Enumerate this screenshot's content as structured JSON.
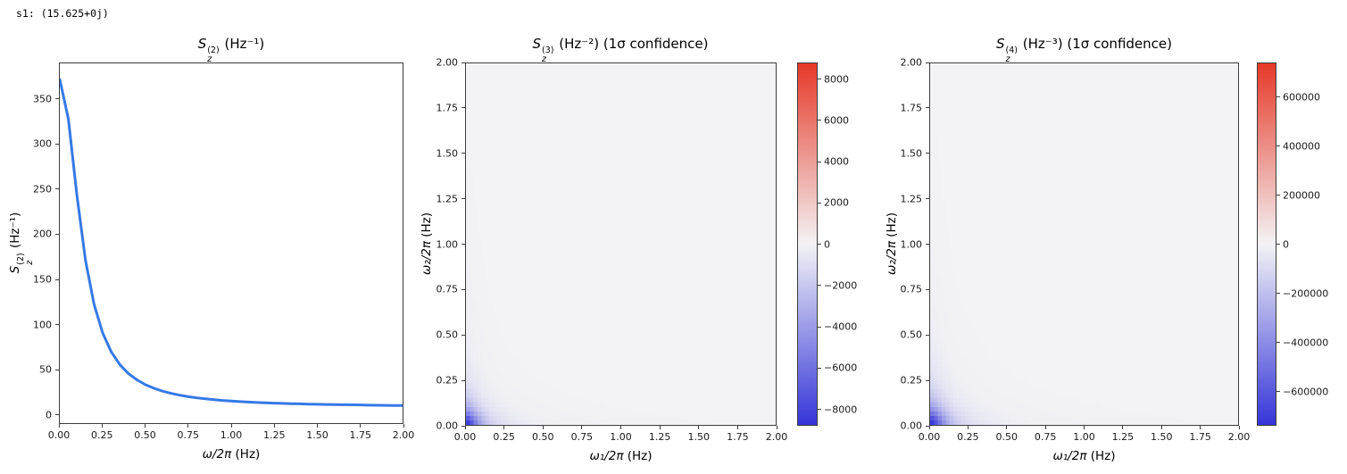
{
  "annotation": "s1: (15.625+0j)",
  "colors": {
    "line": "#3579e6",
    "cmap_neg": "#3535d9",
    "cmap_zero": "#f3f3f5",
    "cmap_pos": "#e63928",
    "spine": "#3c3c3c",
    "text": "#000000"
  },
  "panels": [
    {
      "title": {
        "base": "S",
        "sup": "(2)",
        "sub": "z",
        "rest": " (Hz⁻¹)"
      },
      "ylabel": {
        "base": "S",
        "sup": "(2)",
        "sub": "z",
        "rest": " (Hz⁻¹)"
      },
      "xlabel": {
        "math": "ω/2π",
        "unit": " (Hz)"
      },
      "xticks": [
        "0.00",
        "0.25",
        "0.50",
        "0.75",
        "1.00",
        "1.25",
        "1.50",
        "1.75",
        "2.00"
      ],
      "yticks": [
        "0",
        "50",
        "100",
        "150",
        "200",
        "250",
        "300",
        "350"
      ]
    },
    {
      "title": {
        "base": "S",
        "sup": "(3)",
        "sub": "z",
        "rest": " (Hz⁻²) (1σ confidence)"
      },
      "ylabel": {
        "math": "ω₂/2π",
        "unit": " (Hz)"
      },
      "xlabel": {
        "math": "ω₁/2π",
        "unit": " (Hz)"
      },
      "xticks": [
        "0.00",
        "0.25",
        "0.50",
        "0.75",
        "1.00",
        "1.25",
        "1.50",
        "1.75",
        "2.00"
      ],
      "yticks": [
        "0.00",
        "0.25",
        "0.50",
        "0.75",
        "1.00",
        "1.25",
        "1.50",
        "1.75",
        "2.00"
      ],
      "colorbar_ticks": [
        {
          "value": 8000,
          "label": "8000"
        },
        {
          "value": 6000,
          "label": "6000"
        },
        {
          "value": 4000,
          "label": "4000"
        },
        {
          "value": 2000,
          "label": "2000"
        },
        {
          "value": 0,
          "label": "0"
        },
        {
          "value": -2000,
          "label": "−2000"
        },
        {
          "value": -4000,
          "label": "−4000"
        },
        {
          "value": -6000,
          "label": "−6000"
        },
        {
          "value": -8000,
          "label": "−8000"
        }
      ]
    },
    {
      "title": {
        "base": "S",
        "sup": "(4)",
        "sub": "z",
        "rest": " (Hz⁻³) (1σ confidence)"
      },
      "ylabel": {
        "math": "ω₂/2π",
        "unit": " (Hz)"
      },
      "xlabel": {
        "math": "ω₁/2π",
        "unit": " (Hz)"
      },
      "xticks": [
        "0.00",
        "0.25",
        "0.50",
        "0.75",
        "1.00",
        "1.25",
        "1.50",
        "1.75",
        "2.00"
      ],
      "yticks": [
        "0.00",
        "0.25",
        "0.50",
        "0.75",
        "1.00",
        "1.25",
        "1.50",
        "1.75",
        "2.00"
      ],
      "colorbar_ticks": [
        {
          "value": 600000,
          "label": "600000"
        },
        {
          "value": 400000,
          "label": "400000"
        },
        {
          "value": 200000,
          "label": "200000"
        },
        {
          "value": 0,
          "label": "0"
        },
        {
          "value": -200000,
          "label": "−200000"
        },
        {
          "value": -400000,
          "label": "−400000"
        },
        {
          "value": -600000,
          "label": "−600000"
        }
      ]
    }
  ],
  "chart_data": [
    {
      "type": "line",
      "title": "S_z^(2) (Hz^-1)",
      "xlabel": "ω/2π (Hz)",
      "ylabel": "S_z^(2) (Hz^-1)",
      "xlim": [
        0,
        2
      ],
      "ylim": [
        -10,
        390
      ],
      "grid": false,
      "x": [
        0,
        0.05,
        0.1,
        0.15,
        0.2,
        0.25,
        0.3,
        0.35,
        0.4,
        0.45,
        0.5,
        0.55,
        0.6,
        0.65,
        0.7,
        0.75,
        0.8,
        0.85,
        0.9,
        0.95,
        1,
        1.05,
        1.1,
        1.15,
        1.2,
        1.25,
        1.3,
        1.35,
        1.4,
        1.45,
        1.5,
        1.55,
        1.6,
        1.65,
        1.7,
        1.75,
        1.8,
        1.85,
        1.9,
        1.95,
        2
      ],
      "y": [
        372,
        328.1,
        243,
        170.9,
        121.9,
        90.2,
        69.3,
        55.1,
        45.2,
        38.1,
        32.7,
        28.7,
        25.5,
        23.1,
        21.1,
        19.4,
        18.1,
        17,
        16,
        15.2,
        14.5,
        13.9,
        13.4,
        12.9,
        12.6,
        12.2,
        11.9,
        11.6,
        11.4,
        11.1,
        10.9,
        10.7,
        10.6,
        10.4,
        10.3,
        10.2,
        10,
        9.9,
        9.8,
        9.7,
        9.7
      ]
    },
    {
      "type": "heatmap",
      "title": "S_z^(3) (Hz^-2) (1σ confidence)",
      "xlabel": "ω₁/2π (Hz)",
      "ylabel": "ω₂/2π (Hz)",
      "xlim": [
        0,
        2
      ],
      "ylim": [
        0,
        2
      ],
      "vmin": -8800,
      "vmax": 8800,
      "colormap": "blue-white-red",
      "legend_position": "right-colorbar",
      "model": {
        "form": "-A/((1+(x/g)^2)*(1+(y/g)^2))",
        "A": 8800,
        "g": 0.08
      },
      "grid_n": 80,
      "sample_x": [
        0,
        0.5,
        1,
        1.5,
        2
      ],
      "sample_y": [
        0,
        0.5,
        1,
        1.5,
        2
      ],
      "sample_values": [
        [
          -8800,
          -220,
          -56,
          -25,
          -14
        ],
        [
          -220,
          -5,
          -1,
          -1,
          0
        ],
        [
          -56,
          -1,
          0,
          0,
          0
        ],
        [
          -25,
          -1,
          0,
          0,
          0
        ],
        [
          -14,
          0,
          0,
          0,
          0
        ]
      ]
    },
    {
      "type": "heatmap",
      "title": "S_z^(4) (Hz^-3) (1σ confidence)",
      "xlabel": "ω₁/2π (Hz)",
      "ylabel": "ω₂/2π (Hz)",
      "xlim": [
        0,
        2
      ],
      "ylim": [
        0,
        2
      ],
      "vmin": -740000,
      "vmax": 740000,
      "colormap": "blue-white-red",
      "legend_position": "right-colorbar",
      "model": {
        "form": "-A/((1+(x/g)^2)*(1+(y/g)^2))",
        "A": 740000,
        "g": 0.09
      },
      "grid_n": 80,
      "sample_x": [
        0,
        0.5,
        1,
        1.5,
        2
      ],
      "sample_y": [
        0,
        0.5,
        1,
        1.5,
        2
      ],
      "sample_values": [
        [
          -740000,
          -23230,
          -5944,
          -2654,
          -1496
        ],
        [
          -23230,
          -729,
          -187,
          -83,
          -47
        ],
        [
          -5944,
          -187,
          -48,
          -21,
          -12
        ],
        [
          -2654,
          -83,
          -21,
          -10,
          -5
        ],
        [
          -1496,
          -47,
          -12,
          -5,
          -3
        ]
      ]
    }
  ]
}
